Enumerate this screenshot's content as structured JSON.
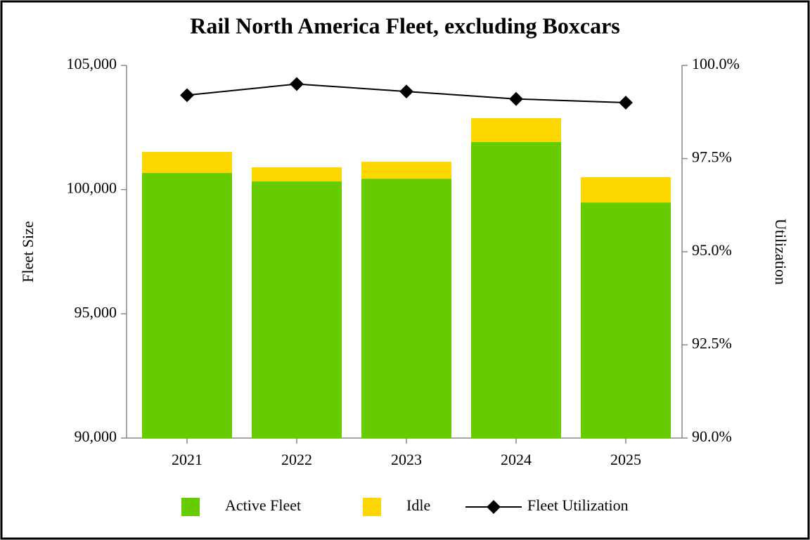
{
  "chart_data": {
    "type": "bar",
    "stacked": true,
    "title": "Rail North America Fleet, excluding Boxcars",
    "ylabel": "Fleet Size",
    "y2label": "Utilization",
    "categories": [
      "2021",
      "2022",
      "2023",
      "2024",
      "2025"
    ],
    "series": [
      {
        "name": "Active Fleet",
        "color": "#66cc00",
        "type": "bar",
        "values": [
          100670,
          100330,
          100440,
          101920,
          99480
        ]
      },
      {
        "name": "Idle",
        "color": "#ffd700",
        "type": "bar",
        "values": [
          850,
          570,
          680,
          960,
          1020
        ]
      },
      {
        "name": "Fleet Utilization",
        "color": "#000000",
        "type": "line",
        "axis": "y2",
        "values": [
          99.2,
          99.5,
          99.3,
          99.1,
          99.0
        ]
      }
    ],
    "ylim": [
      90000,
      105000
    ],
    "yticks": [
      {
        "value": 90000,
        "label": "90,000"
      },
      {
        "value": 95000,
        "label": "95,000"
      },
      {
        "value": 100000,
        "label": "100,000"
      },
      {
        "value": 105000,
        "label": "105,000"
      }
    ],
    "y2lim": [
      90,
      100
    ],
    "y2ticks": [
      {
        "value": 90,
        "label": "90.0%"
      },
      {
        "value": 92.5,
        "label": "92.5%"
      },
      {
        "value": 95,
        "label": "95.0%"
      },
      {
        "value": 97.5,
        "label": "97.5%"
      },
      {
        "value": 100,
        "label": "100.0%"
      }
    ],
    "legend": "bottom"
  }
}
